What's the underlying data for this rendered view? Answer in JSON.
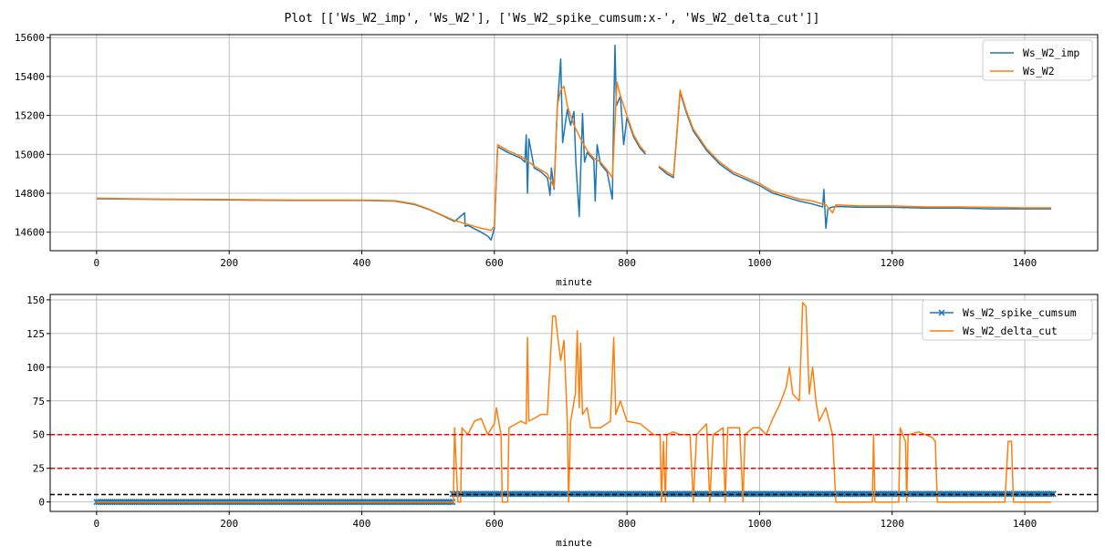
{
  "title": "Plot [['Ws_W2_imp', 'Ws_W2'], ['Ws_W2_spike_cumsum:x-', 'Ws_W2_delta_cut']]",
  "colors": {
    "blue": "#1f77b4",
    "orange": "#ff7f0e",
    "red": "#ff0000",
    "black": "#000000",
    "grid": "#b0b0b0"
  },
  "chart_data": [
    {
      "type": "line",
      "xlabel": "minute",
      "ylabel": "",
      "xlim": [
        -70,
        1510
      ],
      "ylim": [
        14505,
        15615
      ],
      "xticks": [
        0,
        200,
        400,
        600,
        800,
        1000,
        1200,
        1400
      ],
      "yticks": [
        14600,
        14800,
        15000,
        15200,
        15400,
        15600
      ],
      "grid": true,
      "legend_position": "top-right",
      "series": [
        {
          "name": "Ws_W2_imp",
          "color": "#1f77b4",
          "points": [
            [
              0,
              14772
            ],
            [
              50,
              14770
            ],
            [
              100,
              14768
            ],
            [
              200,
              14766
            ],
            [
              300,
              14763
            ],
            [
              400,
              14763
            ],
            [
              450,
              14760
            ],
            [
              480,
              14742
            ],
            [
              500,
              14718
            ],
            [
              520,
              14688
            ],
            [
              540,
              14655
            ],
            [
              555,
              14700
            ],
            [
              556,
              14630
            ],
            [
              560,
              14635
            ],
            [
              580,
              14600
            ],
            [
              590,
              14580
            ],
            [
              595,
              14560
            ],
            [
              600,
              14620
            ],
            [
              605,
              15040
            ],
            [
              620,
              15010
            ],
            [
              640,
              14980
            ],
            [
              646,
              14960
            ],
            [
              648,
              15100
            ],
            [
              650,
              14800
            ],
            [
              652,
              15080
            ],
            [
              660,
              14930
            ],
            [
              670,
              14910
            ],
            [
              680,
              14880
            ],
            [
              684,
              14790
            ],
            [
              686,
              14930
            ],
            [
              690,
              14820
            ],
            [
              695,
              15240
            ],
            [
              700,
              15490
            ],
            [
              703,
              15060
            ],
            [
              710,
              15230
            ],
            [
              715,
              15150
            ],
            [
              720,
              15220
            ],
            [
              723,
              14950
            ],
            [
              728,
              14680
            ],
            [
              733,
              15210
            ],
            [
              736,
              14960
            ],
            [
              740,
              15010
            ],
            [
              750,
              14970
            ],
            [
              752,
              14760
            ],
            [
              755,
              15050
            ],
            [
              760,
              14950
            ],
            [
              770,
              14910
            ],
            [
              778,
              14770
            ],
            [
              780,
              15230
            ],
            [
              782,
              15560
            ],
            [
              784,
              15250
            ],
            [
              790,
              15300
            ],
            [
              795,
              15050
            ],
            [
              800,
              15190
            ],
            [
              810,
              15090
            ],
            [
              820,
              15030
            ],
            [
              828,
              15000
            ],
            [
              null,
              null
            ],
            [
              848,
              14935
            ],
            [
              860,
              14900
            ],
            [
              870,
              14880
            ],
            [
              875,
              15090
            ],
            [
              880,
              15320
            ],
            [
              890,
              15210
            ],
            [
              900,
              15120
            ],
            [
              920,
              15020
            ],
            [
              940,
              14950
            ],
            [
              960,
              14900
            ],
            [
              980,
              14870
            ],
            [
              1000,
              14840
            ],
            [
              1020,
              14800
            ],
            [
              1040,
              14780
            ],
            [
              1060,
              14760
            ],
            [
              1080,
              14745
            ],
            [
              1095,
              14730
            ],
            [
              1097,
              14820
            ],
            [
              1100,
              14620
            ],
            [
              1103,
              14720
            ],
            [
              1110,
              14730
            ],
            [
              1120,
              14732
            ],
            [
              1150,
              14728
            ],
            [
              1200,
              14728
            ],
            [
              1250,
              14724
            ],
            [
              1300,
              14724
            ],
            [
              1350,
              14720
            ],
            [
              1400,
              14720
            ],
            [
              1440,
              14720
            ]
          ]
        },
        {
          "name": "Ws_W2",
          "color": "#ff7f0e",
          "points": [
            [
              0,
              14775
            ],
            [
              50,
              14772
            ],
            [
              100,
              14770
            ],
            [
              200,
              14768
            ],
            [
              300,
              14765
            ],
            [
              400,
              14765
            ],
            [
              450,
              14762
            ],
            [
              480,
              14745
            ],
            [
              500,
              14720
            ],
            [
              520,
              14690
            ],
            [
              540,
              14660
            ],
            [
              560,
              14640
            ],
            [
              580,
              14620
            ],
            [
              595,
              14610
            ],
            [
              600,
              14630
            ],
            [
              605,
              15050
            ],
            [
              620,
              15020
            ],
            [
              640,
              14990
            ],
            [
              660,
              14940
            ],
            [
              680,
              14900
            ],
            [
              690,
              14830
            ],
            [
              695,
              15250
            ],
            [
              700,
              15330
            ],
            [
              705,
              15350
            ],
            [
              710,
              15250
            ],
            [
              720,
              15150
            ],
            [
              730,
              15080
            ],
            [
              740,
              15020
            ],
            [
              750,
              14980
            ],
            [
              760,
              14960
            ],
            [
              770,
              14920
            ],
            [
              778,
              14880
            ],
            [
              785,
              15370
            ],
            [
              790,
              15300
            ],
            [
              800,
              15200
            ],
            [
              810,
              15100
            ],
            [
              820,
              15040
            ],
            [
              828,
              15010
            ],
            [
              null,
              null
            ],
            [
              848,
              14940
            ],
            [
              860,
              14910
            ],
            [
              870,
              14890
            ],
            [
              875,
              15100
            ],
            [
              880,
              15330
            ],
            [
              890,
              15220
            ],
            [
              900,
              15130
            ],
            [
              920,
              15030
            ],
            [
              940,
              14960
            ],
            [
              960,
              14910
            ],
            [
              980,
              14880
            ],
            [
              1000,
              14850
            ],
            [
              1020,
              14810
            ],
            [
              1040,
              14790
            ],
            [
              1060,
              14770
            ],
            [
              1080,
              14760
            ],
            [
              1100,
              14740
            ],
            [
              1110,
              14700
            ],
            [
              1115,
              14740
            ],
            [
              1150,
              14735
            ],
            [
              1200,
              14735
            ],
            [
              1250,
              14730
            ],
            [
              1300,
              14730
            ],
            [
              1350,
              14728
            ],
            [
              1400,
              14725
            ],
            [
              1440,
              14725
            ]
          ]
        }
      ]
    },
    {
      "type": "line",
      "xlabel": "minute",
      "ylabel": "",
      "xlim": [
        -70,
        1510
      ],
      "ylim": [
        -7,
        154
      ],
      "xticks": [
        0,
        200,
        400,
        600,
        800,
        1000,
        1200,
        1400
      ],
      "yticks": [
        0,
        25,
        50,
        75,
        100,
        125,
        150
      ],
      "grid": true,
      "legend_position": "top-right",
      "hlines": [
        {
          "y": 50,
          "color": "#ff0000",
          "style": "dashed"
        },
        {
          "y": 25,
          "color": "#ff0000",
          "style": "dashed"
        },
        {
          "y": 5.5,
          "color": "#000000",
          "style": "dashed"
        }
      ],
      "series": [
        {
          "name": "Ws_W2_spike_cumsum",
          "color": "#1f77b4",
          "marker": "x",
          "segments": [
            {
              "x0": 0,
              "x1": 537,
              "y": 0
            },
            {
              "x0": 537,
              "x1": 1443,
              "y": 6
            }
          ]
        },
        {
          "name": "Ws_W2_delta_cut",
          "color": "#ff7f0e",
          "points": [
            [
              0,
              0
            ],
            [
              538,
              0
            ],
            [
              540,
              55
            ],
            [
              545,
              0
            ],
            [
              549,
              0
            ],
            [
              551,
              55
            ],
            [
              560,
              50
            ],
            [
              570,
              60
            ],
            [
              580,
              62
            ],
            [
              590,
              50
            ],
            [
              600,
              58
            ],
            [
              603,
              70
            ],
            [
              610,
              50
            ],
            [
              612,
              0
            ],
            [
              620,
              0
            ],
            [
              622,
              55
            ],
            [
              640,
              60
            ],
            [
              648,
              58
            ],
            [
              650,
              122
            ],
            [
              652,
              60
            ],
            [
              660,
              62
            ],
            [
              670,
              65
            ],
            [
              680,
              65
            ],
            [
              688,
              138
            ],
            [
              692,
              138
            ],
            [
              695,
              125
            ],
            [
              700,
              105
            ],
            [
              705,
              120
            ],
            [
              710,
              60
            ],
            [
              712,
              0
            ],
            [
              715,
              60
            ],
            [
              722,
              80
            ],
            [
              725,
              127
            ],
            [
              728,
              70
            ],
            [
              730,
              118
            ],
            [
              733,
              65
            ],
            [
              740,
              70
            ],
            [
              745,
              55
            ],
            [
              760,
              55
            ],
            [
              775,
              60
            ],
            [
              780,
              122
            ],
            [
              783,
              65
            ],
            [
              790,
              75
            ],
            [
              800,
              60
            ],
            [
              820,
              58
            ],
            [
              840,
              50
            ],
            [
              850,
              50
            ],
            [
              852,
              0
            ],
            [
              855,
              45
            ],
            [
              858,
              0
            ],
            [
              860,
              50
            ],
            [
              870,
              52
            ],
            [
              880,
              50
            ],
            [
              895,
              50
            ],
            [
              900,
              0
            ],
            [
              905,
              50
            ],
            [
              920,
              58
            ],
            [
              925,
              0
            ],
            [
              930,
              50
            ],
            [
              945,
              55
            ],
            [
              948,
              0
            ],
            [
              952,
              55
            ],
            [
              970,
              55
            ],
            [
              975,
              0
            ],
            [
              978,
              50
            ],
            [
              990,
              55
            ],
            [
              1000,
              55
            ],
            [
              1010,
              50
            ],
            [
              1020,
              62
            ],
            [
              1030,
              72
            ],
            [
              1040,
              85
            ],
            [
              1045,
              100
            ],
            [
              1050,
              80
            ],
            [
              1060,
              75
            ],
            [
              1065,
              148
            ],
            [
              1070,
              145
            ],
            [
              1075,
              80
            ],
            [
              1080,
              100
            ],
            [
              1085,
              75
            ],
            [
              1090,
              60
            ],
            [
              1100,
              70
            ],
            [
              1110,
              50
            ],
            [
              1115,
              0
            ],
            [
              1170,
              0
            ],
            [
              1172,
              50
            ],
            [
              1174,
              0
            ],
            [
              1210,
              0
            ],
            [
              1212,
              55
            ],
            [
              1220,
              45
            ],
            [
              1222,
              0
            ],
            [
              1224,
              50
            ],
            [
              1240,
              52
            ],
            [
              1260,
              48
            ],
            [
              1265,
              45
            ],
            [
              1268,
              0
            ],
            [
              1370,
              0
            ],
            [
              1375,
              45
            ],
            [
              1380,
              45
            ],
            [
              1383,
              0
            ],
            [
              1440,
              0
            ]
          ]
        }
      ]
    }
  ]
}
